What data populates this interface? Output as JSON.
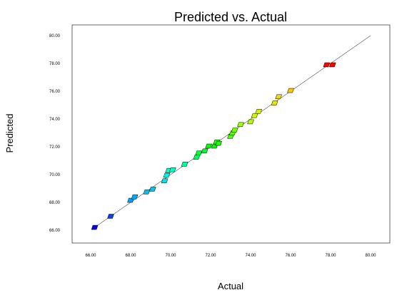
{
  "chart_data": {
    "type": "scatter",
    "title": "Predicted vs. Actual",
    "xlabel": "Actual",
    "ylabel": "Predicted",
    "xlim": [
      65.0,
      81.0
    ],
    "ylim": [
      65.0,
      81.0
    ],
    "x_ticks": [
      "66.00",
      "68.00",
      "70.00",
      "72.00",
      "74.00",
      "76.00",
      "78.00",
      "80.00"
    ],
    "y_ticks": [
      "66.00",
      "68.00",
      "70.00",
      "72.00",
      "74.00",
      "76.00",
      "78.00",
      "80.00"
    ],
    "x_tick_values": [
      66,
      68,
      70,
      72,
      74,
      76,
      78,
      80
    ],
    "y_tick_values": [
      66,
      68,
      70,
      72,
      74,
      76,
      78,
      80
    ],
    "grid": false,
    "reference_line": {
      "from": [
        66.2,
        66.2
      ],
      "to": [
        80.0,
        80.0
      ]
    },
    "color_scale": [
      "#0000ff",
      "#00a0ff",
      "#00ffe0",
      "#00ff00",
      "#c8ff00",
      "#ffd000",
      "#ff0000"
    ],
    "points": [
      {
        "x": 66.2,
        "y": 66.2
      },
      {
        "x": 67.0,
        "y": 67.0
      },
      {
        "x": 68.0,
        "y": 68.15
      },
      {
        "x": 68.2,
        "y": 68.4
      },
      {
        "x": 68.8,
        "y": 68.75
      },
      {
        "x": 69.1,
        "y": 68.95
      },
      {
        "x": 69.7,
        "y": 69.55
      },
      {
        "x": 69.8,
        "y": 69.95
      },
      {
        "x": 69.9,
        "y": 70.3
      },
      {
        "x": 70.1,
        "y": 70.35
      },
      {
        "x": 70.7,
        "y": 70.75
      },
      {
        "x": 71.3,
        "y": 71.25
      },
      {
        "x": 71.4,
        "y": 71.55
      },
      {
        "x": 71.7,
        "y": 71.7
      },
      {
        "x": 71.9,
        "y": 72.05
      },
      {
        "x": 72.2,
        "y": 72.05
      },
      {
        "x": 72.3,
        "y": 72.35
      },
      {
        "x": 72.4,
        "y": 72.25
      },
      {
        "x": 73.0,
        "y": 72.75
      },
      {
        "x": 73.1,
        "y": 73.0
      },
      {
        "x": 73.2,
        "y": 73.2
      },
      {
        "x": 73.5,
        "y": 73.6
      },
      {
        "x": 74.0,
        "y": 73.8
      },
      {
        "x": 74.2,
        "y": 74.25
      },
      {
        "x": 74.4,
        "y": 74.55
      },
      {
        "x": 75.2,
        "y": 75.15
      },
      {
        "x": 75.4,
        "y": 75.6
      },
      {
        "x": 76.0,
        "y": 76.05
      },
      {
        "x": 77.8,
        "y": 77.9
      },
      {
        "x": 78.1,
        "y": 77.9
      }
    ]
  }
}
